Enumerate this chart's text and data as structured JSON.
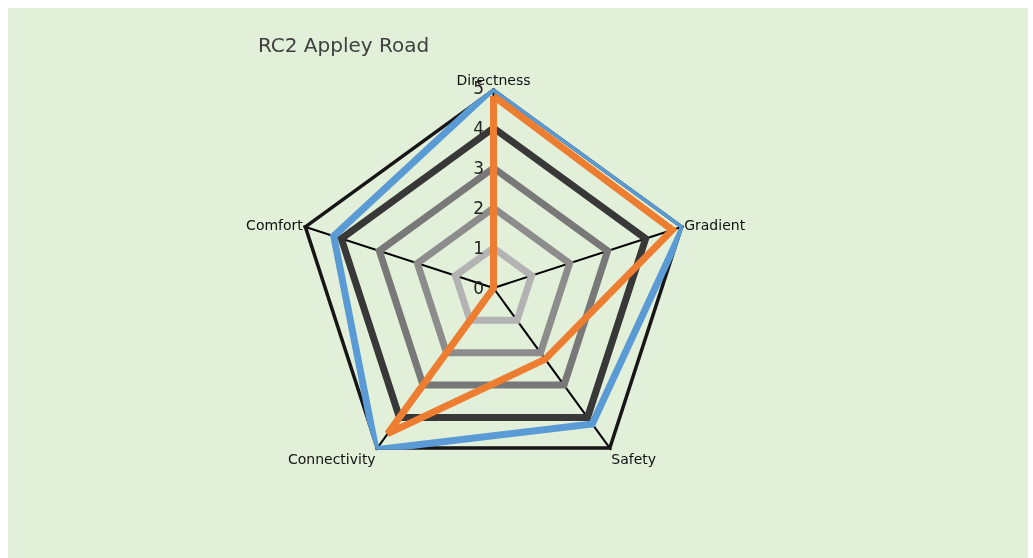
{
  "chart_data": {
    "type": "radar",
    "title": "RC2 Appley Road",
    "categories": [
      "Directness",
      "Gradient",
      "Safety",
      "Connectivity",
      "Comfort"
    ],
    "ylim": [
      0,
      5
    ],
    "yticks": [
      0,
      1,
      2,
      3,
      4,
      5
    ],
    "grid": true,
    "marker": "none",
    "series": [
      {
        "color": "#5b9bd5",
        "values": [
          5,
          5,
          4.2,
          5,
          4.2
        ]
      },
      {
        "color": "#ed7d31",
        "values": [
          4.8,
          4.7,
          2.2,
          4.5,
          0
        ]
      }
    ]
  }
}
